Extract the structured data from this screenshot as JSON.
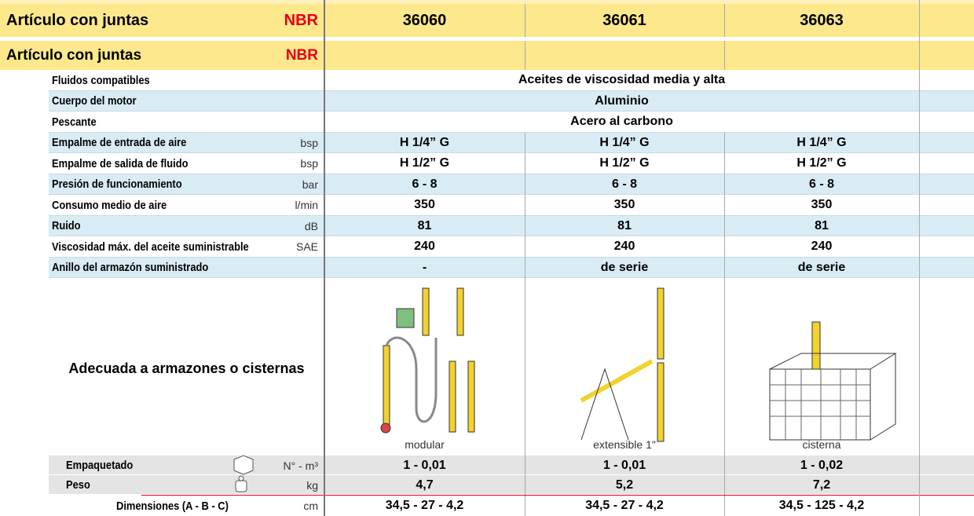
{
  "header_rows": [
    {
      "label": "Artículo con juntas",
      "material": "NBR",
      "values": [
        "36060",
        "36061",
        "36063"
      ]
    },
    {
      "label": "Artículo con juntas",
      "material": "NBR"
    }
  ],
  "specs": [
    {
      "label": "Fluidos compatibles",
      "value": "Aceites de viscosidad media y alta"
    },
    {
      "label": "Cuerpo del motor",
      "value": "Aluminio"
    },
    {
      "label": "Pescante",
      "value": "Acero al carbono"
    },
    {
      "label": "Empalme de entrada de aire",
      "unit": "bsp",
      "values": [
        "H 1/4” G",
        "H 1/4” G",
        "H 1/4” G"
      ]
    },
    {
      "label": "Empalme de salida de fluido",
      "unit": "bsp",
      "values": [
        "H 1/2” G",
        "H 1/2” G",
        "H 1/2” G"
      ]
    },
    {
      "label": "Presión de funcionamiento",
      "unit": "bar",
      "values": [
        "6 - 8",
        "6 - 8",
        "6 - 8"
      ]
    },
    {
      "label": "Consumo medio de aire",
      "unit": "l/min",
      "values": [
        "350",
        "350",
        "350"
      ]
    },
    {
      "label": "Ruido",
      "unit": "dB",
      "values": [
        "81",
        "81",
        "81"
      ]
    },
    {
      "label": "Viscosidad máx. del aceite suministrable",
      "unit": "SAE",
      "values": [
        "240",
        "240",
        "240"
      ]
    },
    {
      "label": "Anillo del armazón suministrado",
      "values": [
        "-",
        "de serie",
        "de serie"
      ]
    }
  ],
  "suitability": {
    "label": "Adecuada a armazones o cisternas",
    "captions": [
      "modular",
      "extensible 1\"",
      "cisterna"
    ]
  },
  "packaging": [
    {
      "label": "Empaquetado",
      "unit": "N° - m³",
      "values": [
        "1 - 0,01",
        "1 - 0,01",
        "1 - 0,02"
      ]
    },
    {
      "label": "Peso",
      "unit": "kg",
      "values": [
        "4,7",
        "5,2",
        "7,2"
      ]
    },
    {
      "label": "Dimensiones (A - B - C)",
      "unit": "cm",
      "values": [
        "34,5 - 27 - 4,2",
        "34,5 - 27 - 4,2",
        "34,5 - 125 - 4,2"
      ]
    }
  ]
}
